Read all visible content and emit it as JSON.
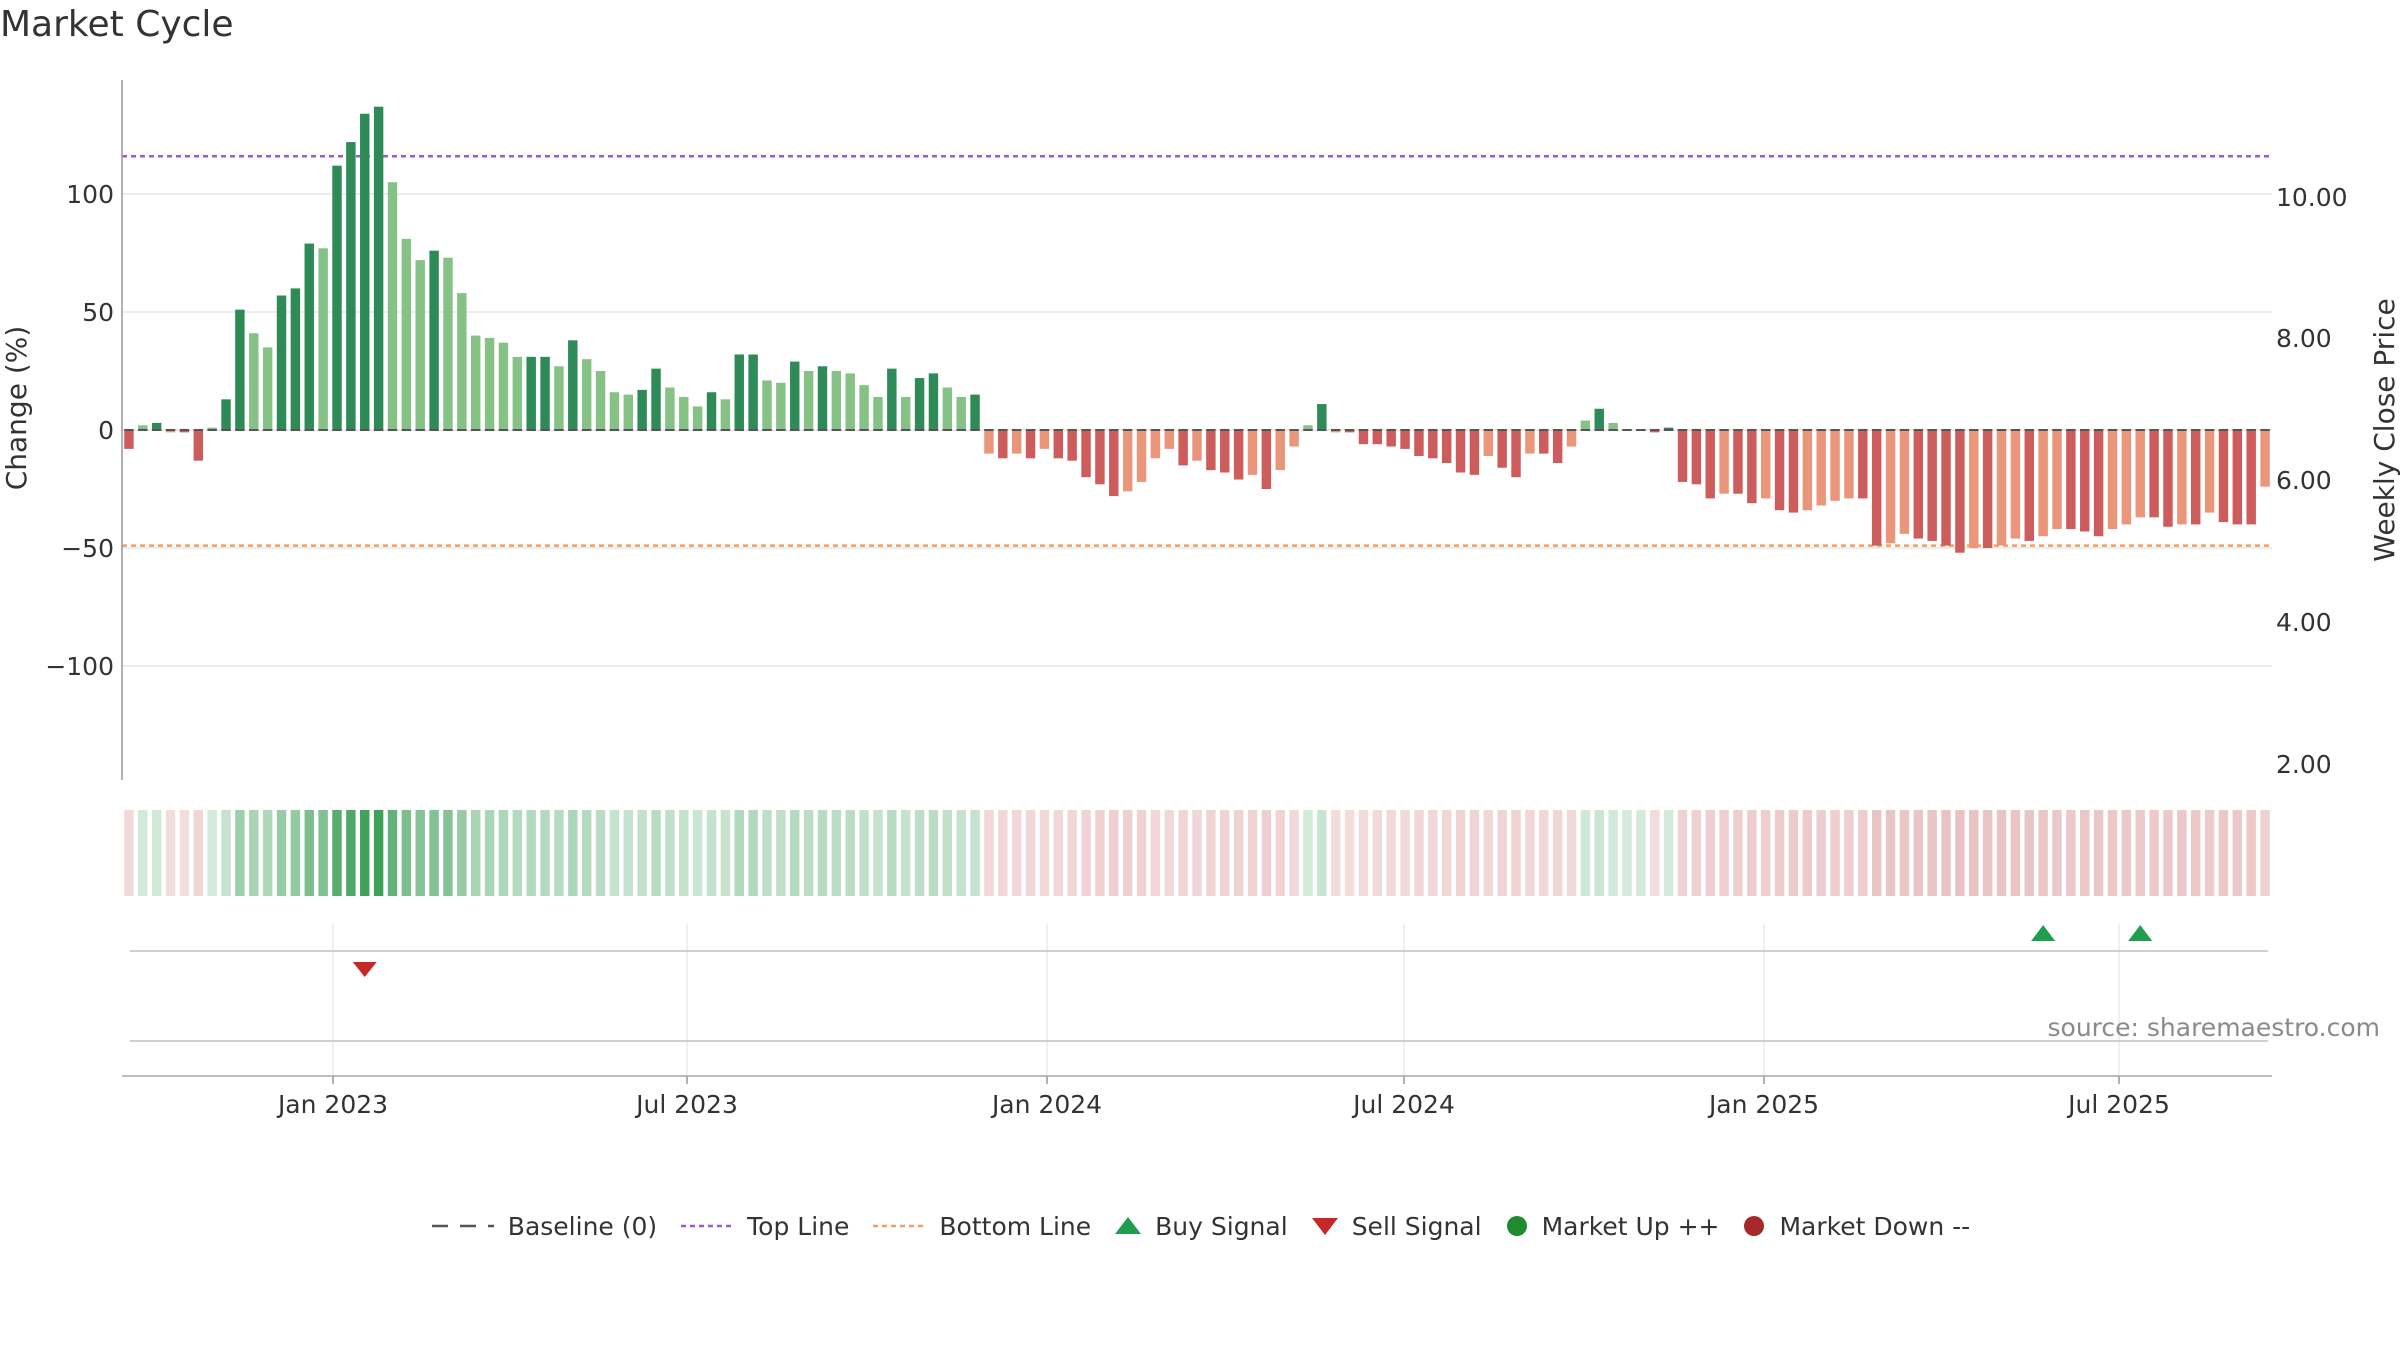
{
  "title": "Market Cycle",
  "source": "source: sharemaestro.com",
  "colors": {
    "up_strong": "#2e8b57",
    "up_weak": "#86c286",
    "down_strong": "#cd5c5c",
    "down_weak": "#e9967a",
    "top_line": "#9b59d6",
    "bottom_line": "#f0a060",
    "baseline": "#555555",
    "buy": "#1e9e4e",
    "sell": "#c62828",
    "market_up": "#1f8a2e",
    "market_down": "#a62828"
  },
  "legend": [
    {
      "label": "Baseline (0)",
      "icon": "dash-line-icon"
    },
    {
      "label": "Top Line",
      "icon": "dotted-line-icon"
    },
    {
      "label": "Bottom Line",
      "icon": "dotted-line-icon"
    },
    {
      "label": "Buy Signal",
      "icon": "triangle-up-icon"
    },
    {
      "label": "Sell Signal",
      "icon": "triangle-down-icon"
    },
    {
      "label": "Market Up ++",
      "icon": "circle-icon"
    },
    {
      "label": "Market Down --",
      "icon": "circle-icon"
    }
  ],
  "chart_data": {
    "type": "bar",
    "title": "Market Cycle",
    "ylabel_left": "Change (%)",
    "ylabel_right": "Weekly Close Price",
    "ylim_left": [
      -148,
      148
    ],
    "yticks_left": [
      100,
      50,
      0,
      -50,
      -100
    ],
    "ytick_labels_left": [
      "100",
      "50",
      "0",
      "−50",
      "−100"
    ],
    "yticks_right": [
      "10.00",
      "8.00",
      "6.00",
      "4.00",
      "2.00"
    ],
    "x_tick_labels": [
      "Jan 2023",
      "Jul 2023",
      "Jan 2024",
      "Jul 2024",
      "Jan 2025",
      "Jul 2025"
    ],
    "top_line": 116,
    "bottom_line": -49,
    "baseline": 0,
    "grid": true,
    "legend_position": "bottom-center",
    "values": [
      -8,
      2,
      3,
      -1,
      -1,
      -13,
      1,
      13,
      51,
      41,
      35,
      57,
      60,
      79,
      77,
      112,
      122,
      134,
      137,
      105,
      81,
      72,
      76,
      73,
      58,
      40,
      39,
      37,
      31,
      31,
      31,
      27,
      38,
      30,
      25,
      16,
      15,
      17,
      26,
      18,
      14,
      10,
      16,
      13,
      32,
      32,
      21,
      20,
      29,
      25,
      27,
      25,
      24,
      19,
      14,
      26,
      14,
      22,
      24,
      18,
      14,
      15,
      -10,
      -12,
      -10,
      -12,
      -8,
      -12,
      -13,
      -20,
      -23,
      -28,
      -26,
      -22,
      -12,
      -8,
      -15,
      -13,
      -17,
      -18,
      -21,
      -19,
      -25,
      -17,
      -7,
      2,
      11,
      -1,
      -1,
      -6,
      -6,
      -7,
      -8,
      -11,
      -12,
      -14,
      -18,
      -19,
      -11,
      -16,
      -20,
      -10,
      -10,
      -14,
      -7,
      4,
      9,
      3,
      0,
      0,
      -1,
      1,
      -22,
      -23,
      -29,
      -27,
      -27,
      -31,
      -29,
      -34,
      -35,
      -34,
      -32,
      -30,
      -29,
      -29,
      -49,
      -48,
      -44,
      -46,
      -47,
      -49,
      -52,
      -50,
      -50,
      -49,
      -46,
      -47,
      -45,
      -42,
      -42,
      -43,
      -45,
      -42,
      -40,
      -37,
      -37,
      -41,
      -40,
      -40,
      -35,
      -39,
      -40,
      -40,
      -24
    ],
    "buy_signals": [
      138,
      145
    ],
    "sell_signals": [
      17
    ]
  }
}
